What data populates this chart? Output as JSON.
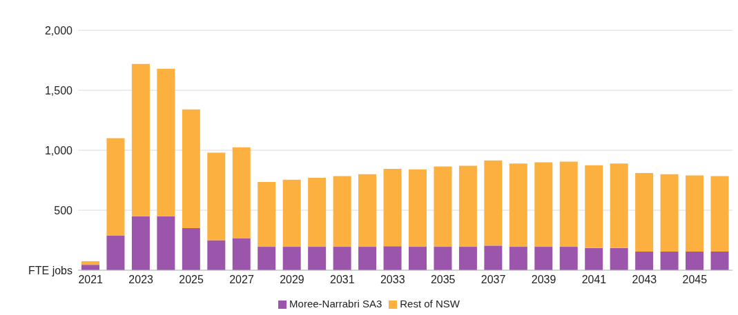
{
  "chart_data": {
    "type": "bar",
    "stacked": true,
    "categories": [
      "2021",
      null,
      "2023",
      null,
      "2025",
      null,
      "2027",
      null,
      "2029",
      null,
      "2031",
      null,
      "2033",
      null,
      "2035",
      null,
      "2037",
      null,
      "2039",
      null,
      "2041",
      null,
      "2043",
      null,
      "2045",
      null
    ],
    "series": [
      {
        "name": "Moree-Narrabri SA3",
        "color": "#9b56ab",
        "values": [
          45,
          290,
          450,
          450,
          350,
          250,
          265,
          195,
          195,
          195,
          195,
          195,
          200,
          195,
          195,
          195,
          205,
          195,
          195,
          195,
          185,
          185,
          155,
          155,
          155,
          155
        ]
      },
      {
        "name": "Rest of NSW",
        "color": "#fbb040",
        "values": [
          30,
          810,
          1270,
          1230,
          990,
          730,
          760,
          540,
          560,
          575,
          590,
          605,
          645,
          645,
          670,
          675,
          710,
          695,
          705,
          710,
          690,
          705,
          655,
          645,
          635,
          630
        ]
      }
    ],
    "ylim": [
      0,
      2000
    ],
    "yticks": [
      {
        "value": 0,
        "label": "FTE jobs"
      },
      {
        "value": 500,
        "label": "500"
      },
      {
        "value": 1000,
        "label": "1,000"
      },
      {
        "value": 1500,
        "label": "1,500"
      },
      {
        "value": 2000,
        "label": "2,000"
      }
    ],
    "grid": "y",
    "legend": "bottom"
  }
}
